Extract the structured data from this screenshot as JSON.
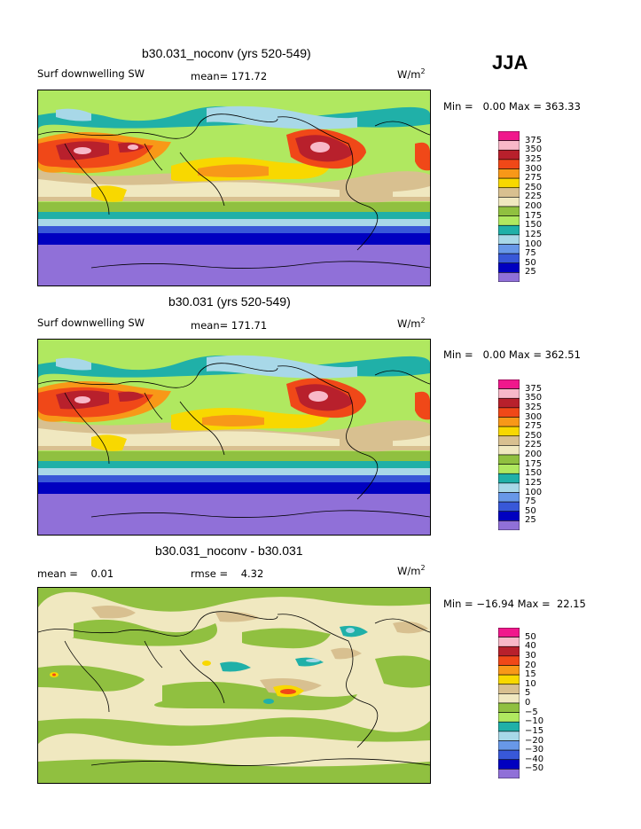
{
  "season": "JJA",
  "units_base": "W/m",
  "units_sup": "2",
  "panels": [
    {
      "title": "b30.031_noconv (yrs 520-549)",
      "left_label": "Surf downwelling SW",
      "stat1": "mean= 171.72",
      "stat2": "",
      "minmax": "Min =   0.00 Max = 363.33"
    },
    {
      "title": "b30.031 (yrs 520-549)",
      "left_label": "Surf downwelling SW",
      "stat1": "mean= 171.71",
      "stat2": "",
      "minmax": "Min =   0.00 Max = 362.51"
    },
    {
      "title": "b30.031_noconv - b30.031",
      "left_label": "mean =    0.01",
      "stat1": "rmse =    4.32",
      "stat2": "",
      "minmax": "Min = −16.94 Max =  22.15"
    }
  ],
  "colorbar_abs": {
    "labels": [
      "375",
      "350",
      "325",
      "300",
      "275",
      "250",
      "225",
      "200",
      "175",
      "150",
      "125",
      "100",
      "75",
      "50",
      "25"
    ],
    "colors": [
      "#f0188c",
      "#f8b8c8",
      "#b8202c",
      "#f04818",
      "#f89818",
      "#f8d800",
      "#d8c090",
      "#f0e8c0",
      "#90c040",
      "#b0e860",
      "#20b0a8",
      "#a8d8e8",
      "#6898e8",
      "#3858d8",
      "#0000c0",
      "#9070d8"
    ]
  },
  "colorbar_diff": {
    "labels": [
      "50",
      "40",
      "30",
      "20",
      "15",
      "10",
      "5",
      "0",
      "−5",
      "−10",
      "−15",
      "−20",
      "−30",
      "−40",
      "−50"
    ],
    "colors": [
      "#f0188c",
      "#f8b8c8",
      "#b8202c",
      "#f04818",
      "#f89818",
      "#f8d800",
      "#d8c090",
      "#f0e8c0",
      "#90c040",
      "#b0e860",
      "#20b0a8",
      "#a8d8e8",
      "#6898e8",
      "#3858d8",
      "#0000c0",
      "#9070d8"
    ]
  },
  "map_colors": {
    "purple": "#9070d8",
    "navy": "#0000c0",
    "blue": "#3858d8",
    "lightblue": "#a8d8e8",
    "teal": "#20b0a8",
    "lime": "#b0e860",
    "green": "#90c040",
    "cream": "#f0e8c0",
    "tan": "#d8c090",
    "yellow": "#f8d800",
    "orange": "#f89818",
    "redorange": "#f04818",
    "darkred": "#b8202c",
    "pink": "#f8b8c8"
  }
}
